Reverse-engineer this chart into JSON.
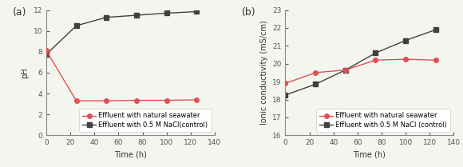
{
  "panel_a": {
    "label": "(a)",
    "time": [
      0,
      25,
      50,
      75,
      100,
      125
    ],
    "seawater_ph": [
      8.1,
      3.3,
      3.3,
      3.35,
      3.35,
      3.4
    ],
    "nacl_ph": [
      7.75,
      10.5,
      11.3,
      11.5,
      11.7,
      11.85
    ],
    "xlabel": "Time (h)",
    "ylabel": "pH",
    "xlim": [
      0,
      140
    ],
    "ylim": [
      0,
      12
    ],
    "yticks": [
      0,
      2,
      4,
      6,
      8,
      10,
      12
    ],
    "xticks": [
      0,
      20,
      40,
      60,
      80,
      100,
      120,
      140
    ],
    "legend_seawater": "Effluent with natural seawater",
    "legend_nacl": "Effluent with 0.5 M NaCl(control)"
  },
  "panel_b": {
    "label": "(b)",
    "time": [
      0,
      25,
      50,
      75,
      100,
      125
    ],
    "seawater_ic": [
      18.9,
      19.5,
      19.65,
      20.2,
      20.25,
      20.2
    ],
    "nacl_ic": [
      18.25,
      18.85,
      19.65,
      20.6,
      21.3,
      21.9
    ],
    "xlabel": "Time (h)",
    "ylabel": "Ionic conductivity (mS/cm)",
    "xlim": [
      0,
      140
    ],
    "ylim": [
      16,
      23
    ],
    "yticks": [
      16,
      17,
      18,
      19,
      20,
      21,
      22,
      23
    ],
    "xticks": [
      0,
      20,
      40,
      60,
      80,
      100,
      120,
      140
    ],
    "legend_seawater": "Effluent with natural seawater",
    "legend_nacl": "Effluent with 0.5 M NaCl (control)"
  },
  "color_seawater": "#e05050",
  "color_nacl": "#404040",
  "marker_seawater": "o",
  "marker_nacl": "s",
  "markersize": 4,
  "linewidth": 1.0,
  "fontsize_label": 7,
  "fontsize_tick": 6.5,
  "fontsize_legend": 6.0,
  "fontsize_panel": 9,
  "fig_bg": "#f5f5f0",
  "ax_bg": "#f5f5f0"
}
